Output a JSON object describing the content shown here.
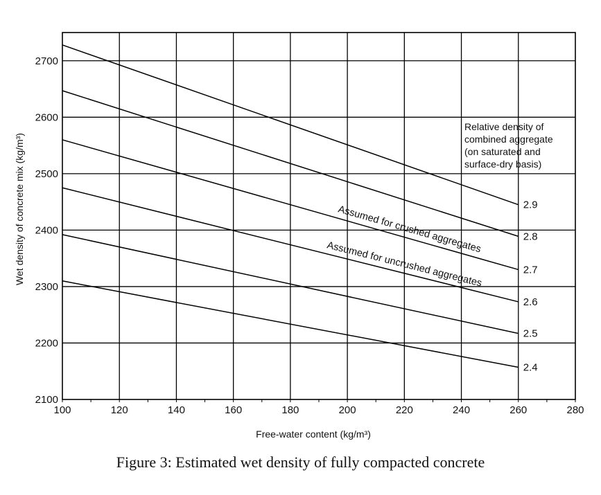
{
  "chart_data": {
    "type": "line",
    "title": "",
    "xlabel": "Free-water content (kg/m³)",
    "ylabel": "Wet density of concrete mix (kg/m³)",
    "xlim": [
      100,
      280
    ],
    "ylim": [
      2100,
      2750
    ],
    "xticks": [
      100,
      120,
      140,
      160,
      180,
      200,
      220,
      240,
      260,
      280
    ],
    "yticks": [
      2100,
      2200,
      2300,
      2400,
      2500,
      2600,
      2700
    ],
    "grid": true,
    "legend_title_lines": [
      "Relative density of",
      "combined aggregate",
      "(on saturated and",
      "surface-dry basis)"
    ],
    "series": [
      {
        "name": "2.9",
        "x": [
          100,
          260
        ],
        "y": [
          2728,
          2445
        ]
      },
      {
        "name": "2.8",
        "x": [
          100,
          260
        ],
        "y": [
          2647,
          2389
        ]
      },
      {
        "name": "2.7",
        "x": [
          100,
          260
        ],
        "y": [
          2560,
          2330
        ]
      },
      {
        "name": "2.6",
        "x": [
          100,
          260
        ],
        "y": [
          2475,
          2273
        ]
      },
      {
        "name": "2.5",
        "x": [
          100,
          260
        ],
        "y": [
          2392,
          2217
        ]
      },
      {
        "name": "2.4",
        "x": [
          100,
          260
        ],
        "y": [
          2310,
          2157
        ]
      }
    ],
    "annotations": [
      {
        "text": "Assumed for crushed aggregates",
        "between": [
          "2.8",
          "2.7"
        ]
      },
      {
        "text": "Assumed for uncrushed aggregates",
        "between": [
          "2.7",
          "2.6"
        ]
      }
    ]
  },
  "caption": "Figure 3: Estimated wet density of fully compacted concrete"
}
